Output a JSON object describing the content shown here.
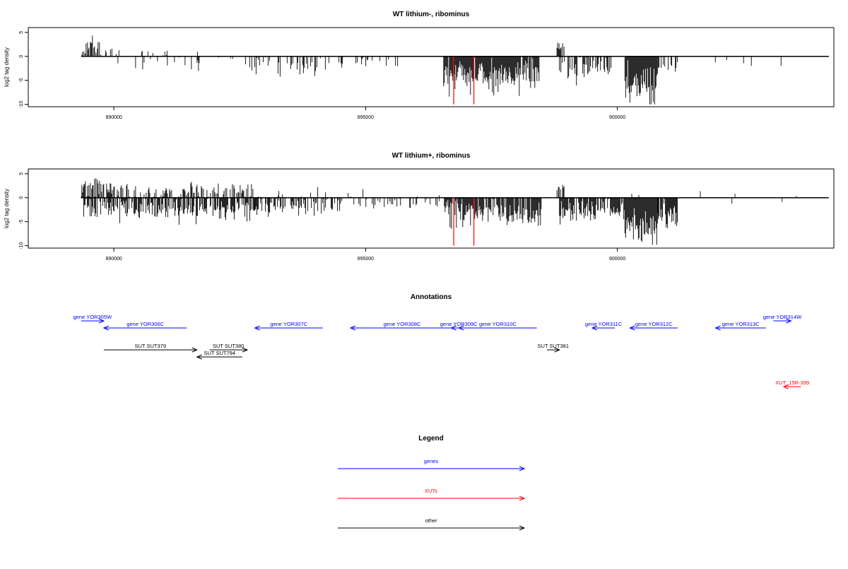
{
  "colors": {
    "gene": "#0000ff",
    "xut": "#ff0000",
    "other": "#000000",
    "marker": "#ff0000"
  },
  "panels": [
    {
      "title": "WT lithium-, ribominus",
      "ylabel": "log2 tag density"
    },
    {
      "title": "WT lithium+, ribominus",
      "ylabel": "log2 tag density"
    }
  ],
  "annotations_title": "Annotations",
  "legend_title": "Legend",
  "legend_items": [
    {
      "label": "genes",
      "kind": "gene"
    },
    {
      "label": "XUTs",
      "kind": "xut"
    },
    {
      "label": "other",
      "kind": "other"
    }
  ],
  "features": [
    {
      "label": "gene YOR305W",
      "kind": "gene",
      "start": 889350,
      "end": 889800,
      "strand": "+",
      "row": 0
    },
    {
      "label": "gene YOR306C",
      "kind": "gene",
      "start": 889800,
      "end": 891450,
      "strand": "-",
      "row": 1
    },
    {
      "label": "gene YOR307C",
      "kind": "gene",
      "start": 892800,
      "end": 894150,
      "strand": "-",
      "row": 1
    },
    {
      "label": "gene YOR308C",
      "kind": "gene",
      "start": 894700,
      "end": 896750,
      "strand": "-",
      "row": 1
    },
    {
      "label": "gene YOR309C",
      "kind": "gene",
      "start": 896700,
      "end": 897000,
      "strand": "-",
      "row": 1
    },
    {
      "label": "gene YOR310C",
      "kind": "gene",
      "start": 896850,
      "end": 898400,
      "strand": "-",
      "row": 1
    },
    {
      "label": "gene YOR311C",
      "kind": "gene",
      "start": 899500,
      "end": 899950,
      "strand": "-",
      "row": 1
    },
    {
      "label": "gene YOR312C",
      "kind": "gene",
      "start": 900250,
      "end": 901200,
      "strand": "-",
      "row": 1
    },
    {
      "label": "gene YOR313C",
      "kind": "gene",
      "start": 901950,
      "end": 902950,
      "strand": "-",
      "row": 1
    },
    {
      "label": "gene YOR314W",
      "kind": "gene",
      "start": 903100,
      "end": 903450,
      "strand": "+",
      "row": 0
    },
    {
      "label": "SUT SUT379",
      "kind": "other",
      "start": 889800,
      "end": 891650,
      "strand": "+",
      "row": 2
    },
    {
      "label": "SUT SUT380",
      "kind": "other",
      "start": 891900,
      "end": 892650,
      "strand": "+",
      "row": 3
    },
    {
      "label": "SUT SUT794",
      "kind": "other",
      "start": 891650,
      "end": 892550,
      "strand": "-",
      "row": 4
    },
    {
      "label": "SUT SUT381",
      "kind": "other",
      "start": 898600,
      "end": 898850,
      "strand": "+",
      "row": 2
    },
    {
      "label": "XUT_15R-399",
      "kind": "xut",
      "start": 903300,
      "end": 903650,
      "strand": "-",
      "row": 5
    }
  ],
  "chart_data": [
    {
      "type": "bar",
      "title": "WT lithium-, ribominus",
      "xlabel": "",
      "ylabel": "log2 tag density",
      "xlim": [
        888300,
        904300
      ],
      "ylim": [
        -10.5,
        6
      ],
      "x_ticks": [
        890000,
        895000,
        900000
      ],
      "y_ticks": [
        5,
        0,
        -5,
        -10
      ],
      "markers_x": [
        896750,
        897150
      ],
      "profile": {
        "pos_regions": [
          {
            "start": 889350,
            "end": 889750,
            "mean": 1.6,
            "sd": 1.3,
            "max": 4.5,
            "density": 0.5
          },
          {
            "start": 889750,
            "end": 891000,
            "mean": 0.9,
            "sd": 0.6,
            "max": 2.3,
            "density": 0.09
          },
          {
            "start": 891000,
            "end": 891700,
            "mean": 0.8,
            "sd": 0.7,
            "max": 2.8,
            "density": 0.06
          },
          {
            "start": 898800,
            "end": 898950,
            "mean": 2.0,
            "sd": 0.9,
            "max": 3.0,
            "density": 0.6
          }
        ],
        "neg_regions": [
          {
            "start": 889800,
            "end": 891700,
            "mean": -1.6,
            "sd": 1.0,
            "min": -4.5,
            "density": 0.14
          },
          {
            "start": 891700,
            "end": 892600,
            "mean": -1.3,
            "sd": 0.8,
            "min": -3.0,
            "density": 0.08
          },
          {
            "start": 892600,
            "end": 894400,
            "mean": -1.9,
            "sd": 1.1,
            "min": -4.8,
            "density": 0.32
          },
          {
            "start": 894400,
            "end": 895800,
            "mean": -1.5,
            "sd": 0.9,
            "min": -4.0,
            "density": 0.18
          },
          {
            "start": 896550,
            "end": 898450,
            "mean": -3.8,
            "sd": 1.6,
            "min": -8.8,
            "density": 0.95
          },
          {
            "start": 898850,
            "end": 899900,
            "mean": -2.2,
            "sd": 1.2,
            "min": -6.2,
            "density": 0.55
          },
          {
            "start": 900150,
            "end": 900800,
            "mean": -5.8,
            "sd": 1.9,
            "min": -10.0,
            "density": 1.0
          },
          {
            "start": 900800,
            "end": 901200,
            "mean": -1.9,
            "sd": 0.9,
            "min": -3.6,
            "density": 0.45
          },
          {
            "start": 901300,
            "end": 903400,
            "mean": -1.2,
            "sd": 0.6,
            "min": -2.6,
            "density": 0.03
          }
        ]
      }
    },
    {
      "type": "bar",
      "title": "WT lithium+, ribominus",
      "xlabel": "",
      "ylabel": "log2 tag density",
      "xlim": [
        888300,
        904300
      ],
      "ylim": [
        -10.5,
        6
      ],
      "x_ticks": [
        890000,
        895000,
        900000
      ],
      "y_ticks": [
        5,
        0,
        -5,
        -10
      ],
      "markers_x": [
        896750,
        897150
      ],
      "profile": {
        "pos_regions": [
          {
            "start": 889350,
            "end": 889800,
            "mean": 2.3,
            "sd": 1.4,
            "max": 5.5,
            "density": 0.75
          },
          {
            "start": 889800,
            "end": 892800,
            "mean": 1.5,
            "sd": 0.9,
            "max": 4.2,
            "density": 0.45
          },
          {
            "start": 892800,
            "end": 895000,
            "mean": 1.0,
            "sd": 0.7,
            "max": 2.2,
            "density": 0.05
          },
          {
            "start": 895000,
            "end": 896500,
            "mean": 0.8,
            "sd": 0.5,
            "max": 2.0,
            "density": 0.02
          },
          {
            "start": 898800,
            "end": 898950,
            "mean": 2.0,
            "sd": 0.8,
            "max": 3.0,
            "density": 0.6
          },
          {
            "start": 899500,
            "end": 904200,
            "mean": 0.7,
            "sd": 0.5,
            "max": 1.8,
            "density": 0.012
          }
        ],
        "neg_regions": [
          {
            "start": 889400,
            "end": 892800,
            "mean": -2.3,
            "sd": 1.2,
            "min": -5.8,
            "density": 0.75
          },
          {
            "start": 892800,
            "end": 894500,
            "mean": -1.9,
            "sd": 1.1,
            "min": -6.3,
            "density": 0.55
          },
          {
            "start": 894500,
            "end": 896500,
            "mean": -1.2,
            "sd": 0.7,
            "min": -2.5,
            "density": 0.25
          },
          {
            "start": 896550,
            "end": 898500,
            "mean": -3.0,
            "sd": 1.5,
            "min": -7.7,
            "density": 0.9
          },
          {
            "start": 898850,
            "end": 900150,
            "mean": -2.7,
            "sd": 1.3,
            "min": -7.5,
            "density": 0.85
          },
          {
            "start": 900150,
            "end": 900800,
            "mean": -5.6,
            "sd": 1.9,
            "min": -9.8,
            "density": 1.0
          },
          {
            "start": 900800,
            "end": 901200,
            "mean": -3.8,
            "sd": 1.6,
            "min": -9.0,
            "density": 0.9
          },
          {
            "start": 901700,
            "end": 903300,
            "mean": -1.0,
            "sd": 0.6,
            "min": -2.7,
            "density": 0.03
          }
        ]
      }
    }
  ]
}
